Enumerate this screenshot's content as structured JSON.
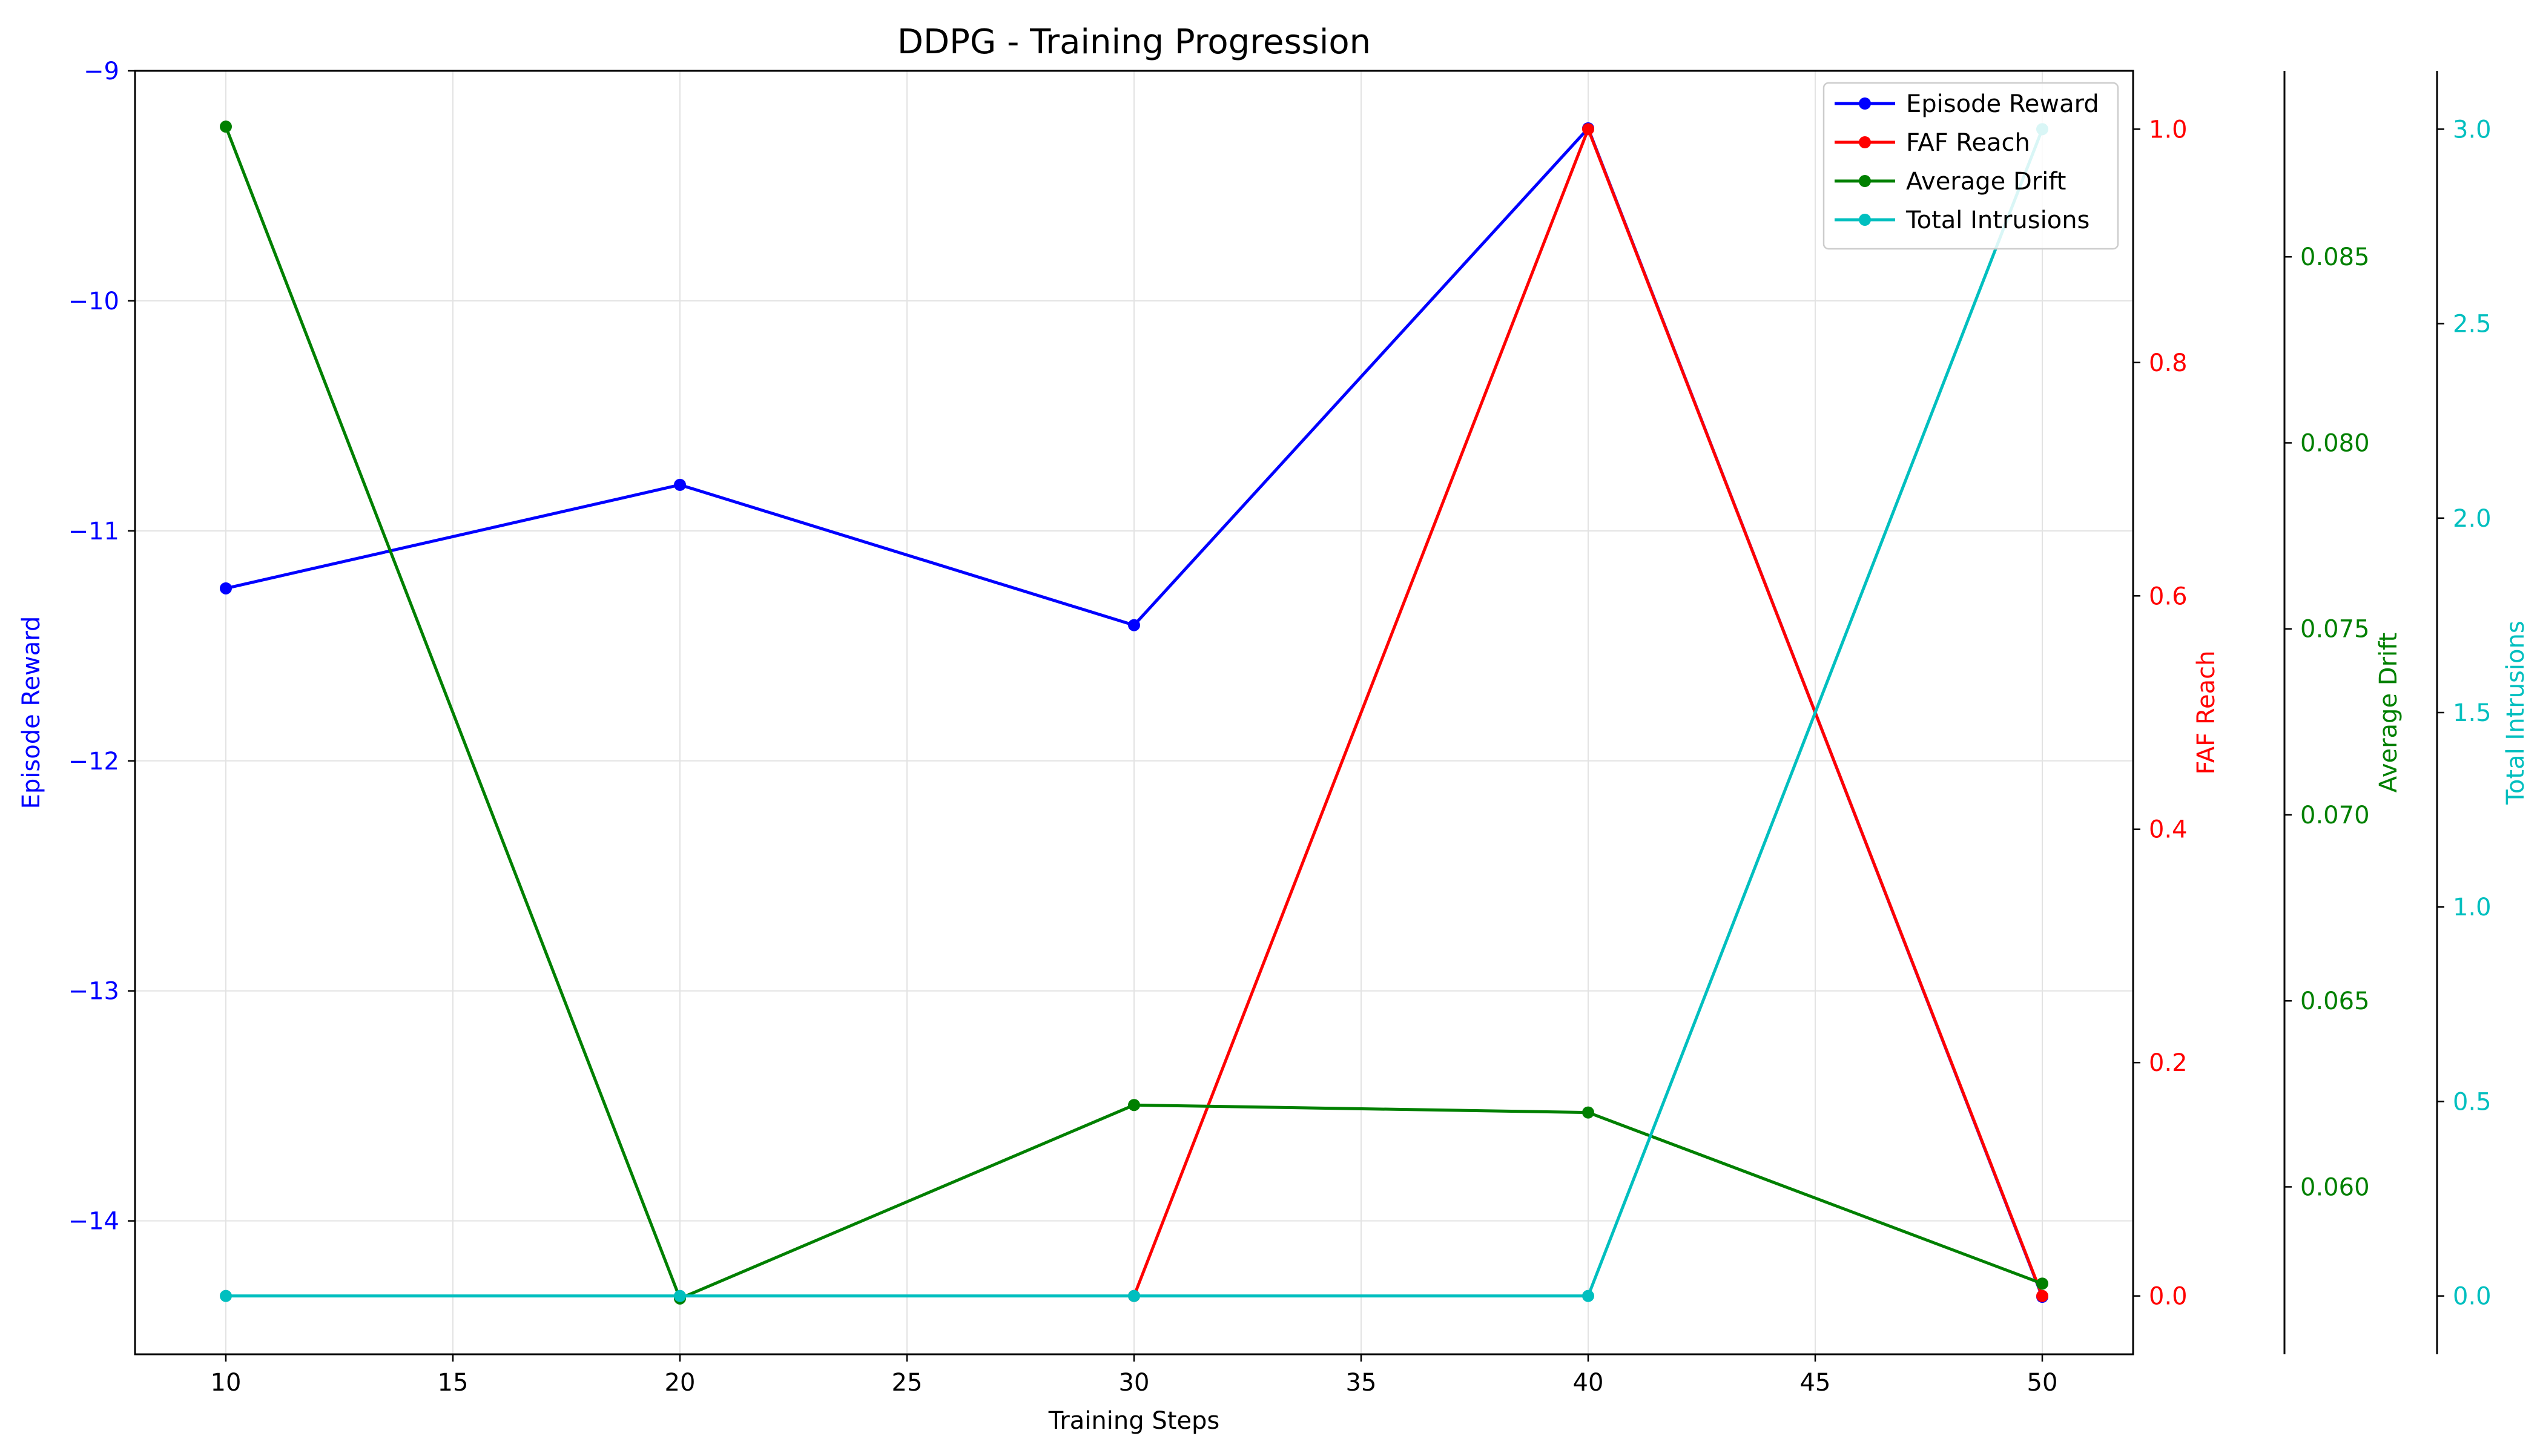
{
  "chart_data": {
    "type": "line",
    "title": "DDPG - Training Progression",
    "xlabel": "Training Steps",
    "x": [
      10,
      20,
      30,
      40,
      50
    ],
    "xlim": [
      8,
      52
    ],
    "xticks": [
      10,
      15,
      20,
      25,
      30,
      35,
      40,
      45,
      50
    ],
    "grid": true,
    "legend_position": "top-right",
    "series": [
      {
        "name": "Episode Reward",
        "axis_label": "Episode Reward",
        "color": "#0000ff",
        "values": [
          -11.25,
          -10.8,
          -11.41,
          -9.25,
          -14.33
        ],
        "ylim": [
          -14.58,
          -9.0
        ],
        "ticks": [
          -9,
          -10,
          -11,
          -12,
          -13,
          -14
        ],
        "tick_labels": [
          "−9",
          "−10",
          "−11",
          "−12",
          "−13",
          "−14"
        ]
      },
      {
        "name": "FAF Reach",
        "axis_label": "FAF Reach",
        "color": "#ff0000",
        "values": [
          null,
          null,
          0.0,
          1.0,
          0.0
        ],
        "ylim": [
          -0.05,
          1.05
        ],
        "ticks": [
          0.0,
          0.2,
          0.4,
          0.6,
          0.8,
          1.0
        ],
        "tick_labels": [
          "0.0",
          "0.2",
          "0.4",
          "0.6",
          "0.8",
          "1.0"
        ]
      },
      {
        "name": "Average Drift",
        "axis_label": "Average Drift",
        "color": "#008000",
        "values": [
          0.0885,
          0.057,
          0.0622,
          0.062,
          0.0574
        ],
        "ylim": [
          0.0555,
          0.09
        ],
        "ticks": [
          0.06,
          0.065,
          0.07,
          0.075,
          0.08,
          0.085
        ],
        "tick_labels": [
          "0.060",
          "0.065",
          "0.070",
          "0.075",
          "0.080",
          "0.085"
        ]
      },
      {
        "name": "Total Intrusions",
        "axis_label": "Total Intrusions",
        "color": "#00bfbf",
        "values": [
          0,
          0,
          0,
          0,
          3
        ],
        "ylim": [
          -0.15,
          3.15
        ],
        "ticks": [
          0.0,
          0.5,
          1.0,
          1.5,
          2.0,
          2.5,
          3.0
        ],
        "tick_labels": [
          "0.0",
          "0.5",
          "1.0",
          "1.5",
          "2.0",
          "2.5",
          "3.0"
        ]
      }
    ]
  }
}
